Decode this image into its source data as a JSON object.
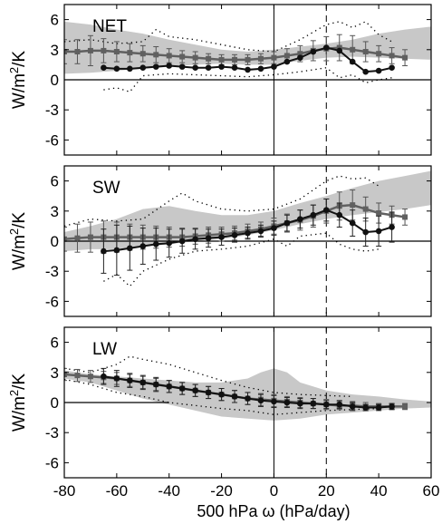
{
  "chart_data": {
    "type": "line",
    "xlabel": "500 hPa ω (hPa/day)",
    "ylabel_main": "W/m",
    "ylabel_sup": "2",
    "ylabel_tail": "/K",
    "xlim": [
      -80,
      60
    ],
    "ylim": [
      -7.5,
      7.5
    ],
    "xticks": [
      -80,
      -60,
      -40,
      -20,
      0,
      20,
      40,
      60
    ],
    "yticks": [
      -6,
      -3,
      0,
      3,
      6
    ],
    "vlines": {
      "solid": 0,
      "dashed": 20
    },
    "colors": {
      "band": "#c8c8c8",
      "black_series": "#111111",
      "gray_series": "#606060"
    },
    "panels": [
      {
        "label": "NET",
        "show_xticklabels": false,
        "zero_line_range": [
          -80,
          60
        ],
        "band_upper": [
          [
            -80,
            5.8
          ],
          [
            -70,
            5.5
          ],
          [
            -60,
            5.0
          ],
          [
            -50,
            4.6
          ],
          [
            -40,
            4.0
          ],
          [
            -30,
            3.5
          ],
          [
            -20,
            3.0
          ],
          [
            -10,
            2.8
          ],
          [
            0,
            3.0
          ],
          [
            10,
            3.3
          ],
          [
            20,
            3.6
          ],
          [
            30,
            4.0
          ],
          [
            40,
            4.6
          ],
          [
            50,
            5.0
          ],
          [
            60,
            5.3
          ]
        ],
        "band_lower": [
          [
            -80,
            0.6
          ],
          [
            -70,
            0.7
          ],
          [
            -60,
            0.9
          ],
          [
            -50,
            1.1
          ],
          [
            -40,
            1.3
          ],
          [
            -30,
            1.5
          ],
          [
            -20,
            1.6
          ],
          [
            -10,
            1.5
          ],
          [
            0,
            1.5
          ],
          [
            10,
            1.9
          ],
          [
            20,
            2.2
          ],
          [
            30,
            2.3
          ],
          [
            40,
            2.2
          ],
          [
            50,
            2.1
          ],
          [
            60,
            2.0
          ]
        ],
        "dotted_upper": [
          [
            -80,
            3.8
          ],
          [
            -70,
            4.0
          ],
          [
            -60,
            3.6
          ],
          [
            -50,
            3.8
          ],
          [
            -45,
            5.0
          ],
          [
            -40,
            4.3
          ],
          [
            -30,
            4.0
          ],
          [
            -20,
            3.5
          ],
          [
            -10,
            3.0
          ],
          [
            0,
            2.8
          ],
          [
            10,
            4.0
          ],
          [
            20,
            5.5
          ],
          [
            25,
            5.8
          ],
          [
            30,
            5.2
          ],
          [
            35,
            5.8
          ],
          [
            40,
            4.5
          ],
          [
            45,
            3.8
          ]
        ],
        "dotted_lower": [
          [
            -65,
            -1.0
          ],
          [
            -60,
            -0.8
          ],
          [
            -55,
            -1.2
          ],
          [
            -50,
            0.4
          ],
          [
            -40,
            0.6
          ],
          [
            -30,
            0.5
          ],
          [
            -20,
            0.4
          ],
          [
            -10,
            0.3
          ],
          [
            0,
            0.5
          ],
          [
            10,
            0.8
          ],
          [
            20,
            1.2
          ],
          [
            25,
            0.2
          ],
          [
            30,
            0.5
          ],
          [
            35,
            -0.3
          ],
          [
            40,
            0.0
          ],
          [
            45,
            0.2
          ]
        ],
        "black_series": {
          "x": [
            -65,
            -60,
            -55,
            -50,
            -45,
            -40,
            -35,
            -30,
            -25,
            -20,
            -15,
            -10,
            -5,
            0,
            5,
            10,
            15,
            20,
            25,
            30,
            35,
            40,
            45
          ],
          "y": [
            1.2,
            1.1,
            1.1,
            1.2,
            1.3,
            1.4,
            1.3,
            1.2,
            1.2,
            1.3,
            1.2,
            1.0,
            1.1,
            1.3,
            1.8,
            2.2,
            2.8,
            3.2,
            2.9,
            1.8,
            0.8,
            0.9,
            1.2
          ]
        },
        "gray_series": {
          "x": [
            -80,
            -75,
            -70,
            -65,
            -60,
            -55,
            -50,
            -45,
            -40,
            -35,
            -30,
            -25,
            -20,
            -15,
            -10,
            -5,
            0,
            5,
            10,
            15,
            20,
            25,
            30,
            35,
            40,
            45,
            50
          ],
          "y": [
            2.8,
            2.8,
            2.9,
            2.9,
            2.8,
            2.7,
            2.6,
            2.5,
            2.4,
            2.3,
            2.2,
            2.1,
            2.0,
            2.0,
            2.0,
            2.1,
            2.2,
            2.4,
            2.6,
            2.9,
            3.1,
            3.2,
            3.0,
            2.8,
            2.6,
            2.4,
            2.2
          ],
          "err": [
            1.2,
            1.2,
            1.5,
            1.2,
            1.0,
            0.9,
            0.8,
            0.8,
            0.7,
            0.6,
            0.6,
            0.5,
            0.5,
            0.5,
            0.5,
            0.5,
            0.6,
            0.7,
            0.8,
            1.0,
            1.2,
            1.3,
            1.4,
            1.0,
            0.8,
            0.8,
            0.8
          ]
        }
      },
      {
        "label": "SW",
        "show_xticklabels": false,
        "zero_line_range": [
          -80,
          60
        ],
        "band_upper": [
          [
            -80,
            0.9
          ],
          [
            -70,
            1.5
          ],
          [
            -60,
            2.2
          ],
          [
            -50,
            3.2
          ],
          [
            -40,
            3.5
          ],
          [
            -30,
            3.0
          ],
          [
            -20,
            2.6
          ],
          [
            -10,
            2.6
          ],
          [
            0,
            3.0
          ],
          [
            10,
            3.8
          ],
          [
            20,
            4.5
          ],
          [
            30,
            5.3
          ],
          [
            40,
            6.0
          ],
          [
            50,
            6.5
          ],
          [
            60,
            7.0
          ]
        ],
        "band_lower": [
          [
            -80,
            -1.0
          ],
          [
            -70,
            -0.8
          ],
          [
            -60,
            -0.8
          ],
          [
            -50,
            -0.6
          ],
          [
            -40,
            -0.3
          ],
          [
            -30,
            0.0
          ],
          [
            -20,
            0.2
          ],
          [
            -10,
            0.6
          ],
          [
            0,
            1.1
          ],
          [
            10,
            1.7
          ],
          [
            20,
            2.2
          ],
          [
            30,
            2.6
          ],
          [
            40,
            2.9
          ],
          [
            50,
            3.2
          ],
          [
            60,
            3.6
          ]
        ],
        "dotted_upper": [
          [
            -80,
            1.5
          ],
          [
            -70,
            2.2
          ],
          [
            -60,
            2.0
          ],
          [
            -50,
            2.2
          ],
          [
            -40,
            4.0
          ],
          [
            -35,
            4.8
          ],
          [
            -30,
            4.0
          ],
          [
            -20,
            3.2
          ],
          [
            -10,
            3.0
          ],
          [
            0,
            3.2
          ],
          [
            10,
            4.2
          ],
          [
            20,
            6.0
          ],
          [
            25,
            6.5
          ],
          [
            30,
            6.2
          ],
          [
            35,
            6.3
          ],
          [
            40,
            5.5
          ]
        ],
        "dotted_lower": [
          [
            -65,
            -4.0
          ],
          [
            -60,
            -3.3
          ],
          [
            -55,
            -4.5
          ],
          [
            -50,
            -3.0
          ],
          [
            -40,
            -1.8
          ],
          [
            -30,
            -1.0
          ],
          [
            -20,
            -0.8
          ],
          [
            -10,
            -0.5
          ],
          [
            0,
            0.2
          ],
          [
            5,
            -0.5
          ],
          [
            10,
            0.5
          ],
          [
            20,
            0.8
          ],
          [
            25,
            -0.3
          ],
          [
            30,
            -0.8
          ],
          [
            35,
            -1.0
          ],
          [
            40,
            -0.8
          ]
        ],
        "black_series": {
          "x": [
            -65,
            -60,
            -55,
            -50,
            -45,
            -40,
            -35,
            -30,
            -25,
            -20,
            -15,
            -10,
            -5,
            0,
            5,
            10,
            15,
            20,
            25,
            30,
            35,
            40,
            45
          ],
          "y": [
            -1.0,
            -0.9,
            -0.7,
            -0.5,
            -0.3,
            -0.2,
            0.0,
            0.2,
            0.3,
            0.4,
            0.6,
            0.8,
            1.0,
            1.3,
            1.8,
            2.2,
            2.6,
            3.1,
            2.6,
            1.8,
            0.9,
            1.0,
            1.4
          ],
          "err": [
            2.2,
            2.5,
            2.2,
            1.8,
            1.6,
            1.4,
            1.2,
            1.0,
            0.9,
            0.8,
            0.7,
            0.6,
            0.6,
            0.7,
            0.8,
            0.9,
            1.0,
            1.1,
            1.2,
            1.3,
            1.4,
            1.5,
            1.5
          ]
        },
        "gray_series": {
          "x": [
            -80,
            -75,
            -70,
            -65,
            -60,
            -55,
            -50,
            -45,
            -40,
            -35,
            -30,
            -25,
            -20,
            -15,
            -10,
            -5,
            0,
            5,
            10,
            15,
            20,
            25,
            30,
            35,
            40,
            45,
            50
          ],
          "y": [
            0.2,
            0.3,
            0.4,
            0.4,
            0.4,
            0.4,
            0.4,
            0.4,
            0.4,
            0.4,
            0.5,
            0.6,
            0.7,
            0.8,
            1.0,
            1.2,
            1.5,
            1.8,
            2.1,
            2.5,
            3.0,
            3.5,
            3.6,
            3.2,
            2.8,
            2.6,
            2.4
          ],
          "err": [
            1.2,
            1.4,
            1.5,
            1.6,
            1.5,
            1.3,
            1.2,
            1.1,
            1.0,
            0.9,
            0.8,
            0.8,
            0.7,
            0.7,
            0.7,
            0.7,
            0.8,
            0.9,
            1.0,
            1.1,
            1.2,
            1.4,
            1.5,
            1.2,
            1.0,
            0.9,
            0.8
          ]
        }
      },
      {
        "label": "LW",
        "show_xticklabels": true,
        "zero_line_range": [
          -80,
          -40
        ],
        "band_upper": [
          [
            -80,
            3.2
          ],
          [
            -70,
            2.8
          ],
          [
            -60,
            2.6
          ],
          [
            -50,
            2.4
          ],
          [
            -40,
            2.2
          ],
          [
            -30,
            2.0
          ],
          [
            -20,
            2.0
          ],
          [
            -10,
            2.4
          ],
          [
            -5,
            3.0
          ],
          [
            0,
            3.4
          ],
          [
            5,
            3.0
          ],
          [
            10,
            2.0
          ],
          [
            20,
            1.2
          ],
          [
            30,
            0.8
          ],
          [
            40,
            0.6
          ],
          [
            50,
            0.3
          ],
          [
            60,
            0.1
          ]
        ],
        "band_lower": [
          [
            -80,
            2.4
          ],
          [
            -70,
            2.0
          ],
          [
            -60,
            1.2
          ],
          [
            -50,
            0.4
          ],
          [
            -40,
            -0.2
          ],
          [
            -30,
            -0.8
          ],
          [
            -20,
            -1.4
          ],
          [
            -10,
            -1.6
          ],
          [
            0,
            -1.8
          ],
          [
            10,
            -1.6
          ],
          [
            20,
            -1.2
          ],
          [
            30,
            -1.0
          ],
          [
            40,
            -0.8
          ],
          [
            50,
            -0.6
          ],
          [
            60,
            -0.5
          ]
        ],
        "dotted_upper": [
          [
            -80,
            3.4
          ],
          [
            -70,
            3.0
          ],
          [
            -60,
            3.8
          ],
          [
            -55,
            4.6
          ],
          [
            -50,
            4.3
          ],
          [
            -40,
            3.8
          ],
          [
            -30,
            3.0
          ],
          [
            -20,
            2.2
          ],
          [
            -10,
            1.5
          ],
          [
            0,
            1.0
          ],
          [
            10,
            0.8
          ],
          [
            20,
            0.7
          ],
          [
            30,
            0.6
          ]
        ],
        "dotted_lower": [
          [
            -80,
            2.3
          ],
          [
            -70,
            1.8
          ],
          [
            -60,
            1.0
          ],
          [
            -50,
            0.6
          ],
          [
            -40,
            0.0
          ],
          [
            -30,
            -0.3
          ],
          [
            -20,
            -0.6
          ],
          [
            -10,
            -0.8
          ],
          [
            0,
            -1.2
          ],
          [
            10,
            -1.0
          ],
          [
            20,
            -0.8
          ],
          [
            30,
            -0.7
          ],
          [
            40,
            -0.6
          ]
        ],
        "black_series": {
          "x": [
            -65,
            -60,
            -55,
            -50,
            -45,
            -40,
            -35,
            -30,
            -25,
            -20,
            -15,
            -10,
            -5,
            0,
            5,
            10,
            15,
            20,
            25,
            30,
            35,
            40,
            45
          ],
          "y": [
            2.6,
            2.4,
            2.2,
            2.0,
            1.8,
            1.6,
            1.4,
            1.2,
            1.0,
            0.8,
            0.6,
            0.4,
            0.2,
            0.1,
            0.0,
            -0.1,
            -0.1,
            -0.2,
            -0.2,
            -0.4,
            -0.5,
            -0.5,
            -0.4
          ],
          "err": [
            0.8,
            0.8,
            0.7,
            0.7,
            0.7,
            0.6,
            0.6,
            0.6,
            0.6,
            0.6,
            0.6,
            0.6,
            0.6,
            0.6,
            0.5,
            0.5,
            0.5,
            0.4,
            0.4,
            0.4,
            0.3,
            0.3,
            0.3
          ]
        },
        "gray_series": {
          "x": [
            -80,
            -75,
            -70,
            -65,
            -60,
            -55,
            -50,
            -45,
            -40,
            -35,
            -30,
            -25,
            -20,
            -15,
            -10,
            -5,
            0,
            5,
            10,
            15,
            20,
            25,
            30,
            35,
            40,
            45,
            50
          ],
          "y": [
            2.8,
            2.7,
            2.6,
            2.5,
            2.4,
            2.2,
            2.0,
            1.8,
            1.6,
            1.4,
            1.2,
            1.0,
            0.8,
            0.6,
            0.4,
            0.3,
            0.2,
            0.1,
            0.0,
            -0.1,
            -0.2,
            -0.3,
            -0.3,
            -0.4,
            -0.4,
            -0.4,
            -0.4
          ],
          "err": [
            0.6,
            0.6,
            0.6,
            0.6,
            0.6,
            0.6,
            0.6,
            0.6,
            0.6,
            0.6,
            0.6,
            0.6,
            0.6,
            0.6,
            0.6,
            0.6,
            0.6,
            0.5,
            0.5,
            0.5,
            0.5,
            0.4,
            0.4,
            0.4,
            0.3,
            0.3,
            0.3
          ]
        }
      }
    ]
  }
}
